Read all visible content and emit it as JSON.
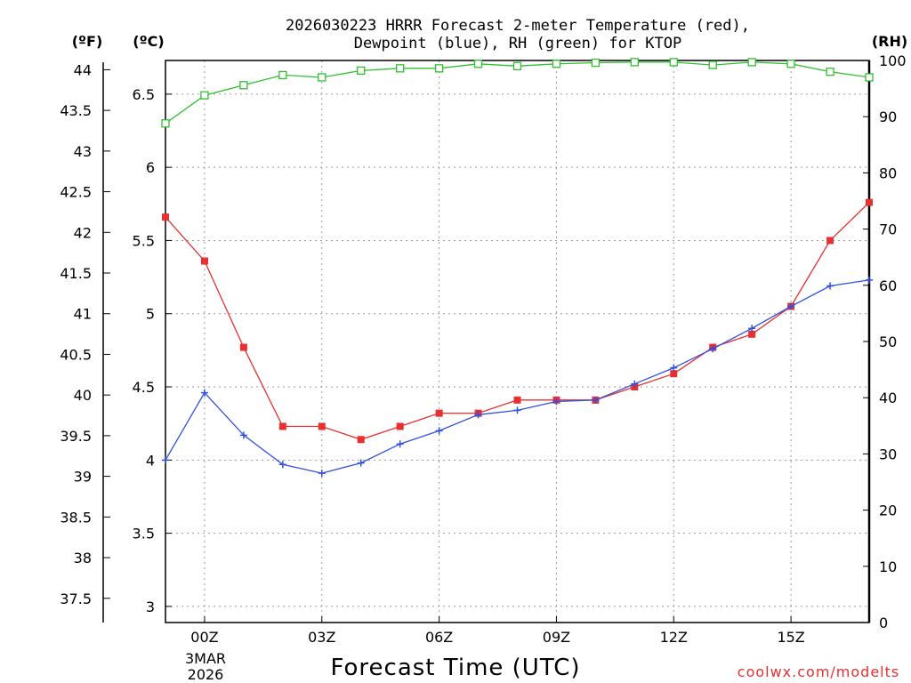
{
  "chart_data": {
    "type": "line",
    "title_line1": "2026030223 HRRR Forecast 2-meter Temperature (red),",
    "title_line2": "Dewpoint (blue), RH (green) for KTOP",
    "xlabel": "Forecast Time (UTC)",
    "credit": "coolwx.com/modelts",
    "units": {
      "fahrenheit": "(ºF)",
      "celsius": "(ºC)",
      "rh": "(RH)"
    },
    "x_ticks": [
      "00Z",
      "03Z",
      "06Z",
      "09Z",
      "12Z",
      "15Z"
    ],
    "x_tick_hours": [
      0,
      3,
      6,
      9,
      12,
      15
    ],
    "x_date_line1": "3MAR",
    "x_date_line2": "2026",
    "xlim_hours": [
      -1,
      17
    ],
    "celsius_ticks": [
      "3",
      "3.5",
      "4",
      "4.5",
      "5",
      "5.5",
      "6",
      "6.5"
    ],
    "celsius_tick_values": [
      3,
      3.5,
      4,
      4.5,
      5,
      5.5,
      6,
      6.5
    ],
    "ylim_celsius": [
      2.89,
      6.73
    ],
    "fahrenheit_ticks": [
      "37.5",
      "38",
      "38.5",
      "39",
      "39.5",
      "40",
      "40.5",
      "41",
      "41.5",
      "42",
      "42.5",
      "43",
      "43.5",
      "44"
    ],
    "fahrenheit_tick_values": [
      37.5,
      38,
      38.5,
      39,
      39.5,
      40,
      40.5,
      41,
      41.5,
      42,
      42.5,
      43,
      43.5,
      44
    ],
    "rh_ticks": [
      "0",
      "10",
      "20",
      "30",
      "40",
      "50",
      "60",
      "70",
      "80",
      "90",
      "100"
    ],
    "rh_tick_values": [
      0,
      10,
      20,
      30,
      40,
      50,
      60,
      70,
      80,
      90,
      100
    ],
    "ylim_rh": [
      0,
      100
    ],
    "hours": [
      -1,
      0,
      1,
      2,
      3,
      4,
      5,
      6,
      7,
      8,
      9,
      10,
      11,
      12,
      13,
      14,
      15,
      16,
      17
    ],
    "series": [
      {
        "name": "Temperature",
        "color": "#e83030",
        "marker": "filled-square",
        "values": [
          5.66,
          5.36,
          4.77,
          4.23,
          4.23,
          4.14,
          4.23,
          4.32,
          4.32,
          4.41,
          4.41,
          4.41,
          4.5,
          4.59,
          4.77,
          4.86,
          5.05,
          5.5,
          5.76
        ]
      },
      {
        "name": "Dewpoint",
        "color": "#3050e0",
        "marker": "plus",
        "values": [
          4.0,
          4.46,
          4.17,
          3.97,
          3.91,
          3.98,
          4.11,
          4.2,
          4.31,
          4.34,
          4.4,
          4.41,
          4.52,
          4.63,
          4.76,
          4.9,
          5.05,
          5.19,
          5.23
        ]
      },
      {
        "name": "RH",
        "color": "#30c030",
        "marker": "open-square",
        "values": [
          88.8,
          93.8,
          95.6,
          97.4,
          97.0,
          98.2,
          98.6,
          98.6,
          99.4,
          99.0,
          99.4,
          99.6,
          99.7,
          99.7,
          99.2,
          99.7,
          99.4,
          98.0,
          97.0
        ]
      }
    ]
  }
}
